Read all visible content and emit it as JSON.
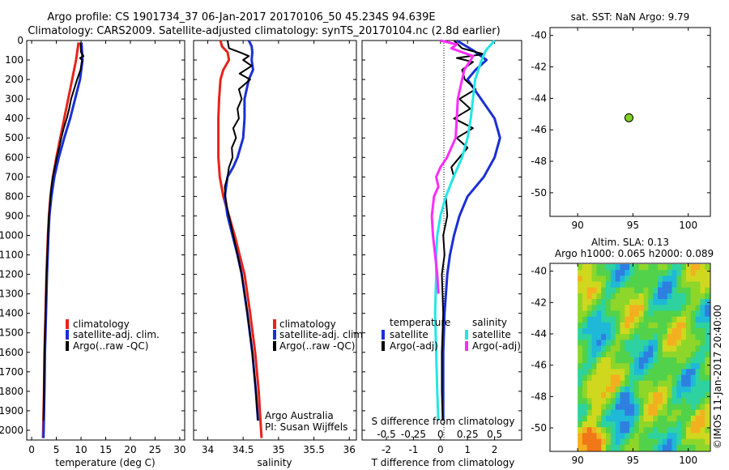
{
  "header": {
    "title_line1": "Argo profile: CS 1901734_37 06-Jan-2017 20170106_50 45.234S 94.639E",
    "title_line2": "Climatology: CARS2009. Satellite-adjusted climatology: synTS_20170104.nc (2.8d earlier)"
  },
  "side_labels": {
    "sst": "sat. SST: NaN Argo: 9.79",
    "sla_line1": "Altim. SLA: 0.13",
    "sla_line2": "Argo h1000: 0.065 h2000: 0.089",
    "stamp": "©IMOS 11-Jan-2017 20:40:00"
  },
  "credits": {
    "line1": "Argo Australia",
    "line2": "PI: Susan Wijffels"
  },
  "colors": {
    "climatology": "#e8231b",
    "satellite": "#1a2fd6",
    "argo": "#000000",
    "salinity_satellite": "#22e6e6",
    "salinity_argo": "#ff2bff",
    "float_dot": "#7dd321"
  },
  "chart_data": [
    {
      "type": "line",
      "xlabel": "temperature (deg C)",
      "xlim": [
        -1,
        31
      ],
      "xticks": [
        0,
        5,
        10,
        15,
        20,
        25,
        30
      ],
      "ylim": [
        2050,
        0
      ],
      "yticks": [
        0,
        100,
        200,
        300,
        400,
        500,
        600,
        700,
        800,
        900,
        1000,
        1100,
        1200,
        1300,
        1400,
        1500,
        1600,
        1700,
        1800,
        1900,
        2000
      ],
      "legend": [
        "climatology",
        "satellite-adj. clim.",
        "Argo(..raw -QC)"
      ],
      "series": [
        {
          "name": "climatology",
          "color": "#e8231b",
          "depth": [
            10,
            100,
            200,
            300,
            400,
            500,
            600,
            700,
            800,
            900,
            1000,
            1200,
            1400,
            1600,
            1800,
            2040
          ],
          "values": [
            9.5,
            9.0,
            8.2,
            7.4,
            6.6,
            5.8,
            5.0,
            4.3,
            3.8,
            3.5,
            3.3,
            3.0,
            2.8,
            2.6,
            2.5,
            2.3
          ]
        },
        {
          "name": "satellite-adj. clim.",
          "color": "#1a2fd6",
          "depth": [
            10,
            100,
            200,
            300,
            400,
            500,
            600,
            700,
            800,
            900,
            1000,
            1200,
            1400,
            1600,
            1800,
            2040
          ],
          "values": [
            10.1,
            10.3,
            9.8,
            8.8,
            7.8,
            6.6,
            5.5,
            4.6,
            4.0,
            3.6,
            3.4,
            3.1,
            2.9,
            2.7,
            2.6,
            2.4
          ]
        },
        {
          "name": "Argo(..raw -QC)",
          "color": "#000000",
          "depth": [
            10,
            60,
            80,
            90,
            100,
            150,
            200,
            250,
            300,
            350,
            400,
            450,
            500,
            550,
            600,
            650,
            700,
            750,
            800,
            900,
            1000,
            1200,
            1400,
            1600,
            1800,
            1950
          ],
          "values": [
            9.9,
            10.0,
            10.5,
            9.8,
            10.2,
            9.9,
            9.2,
            8.6,
            8.0,
            7.6,
            7.1,
            6.5,
            6.0,
            5.6,
            5.1,
            4.7,
            4.3,
            4.0,
            3.8,
            3.5,
            3.3,
            3.0,
            2.8,
            2.6,
            2.5,
            2.4
          ]
        }
      ]
    },
    {
      "type": "line",
      "xlabel": "salinity",
      "xlim": [
        33.8,
        36.1
      ],
      "xticks": [
        34,
        34.5,
        35,
        35.5,
        36
      ],
      "ylim": [
        2050,
        0
      ],
      "legend": [
        "climatology",
        "satellite-adj. clim.",
        "Argo(..raw -QC)"
      ],
      "series": [
        {
          "name": "climatology",
          "color": "#e8231b",
          "depth": [
            0,
            30,
            60,
            100,
            150,
            200,
            300,
            400,
            500,
            600,
            650,
            700,
            800,
            900,
            1000,
            1100,
            1200,
            1400,
            1600,
            1800,
            2040
          ],
          "values": [
            34.18,
            34.2,
            34.28,
            34.3,
            34.22,
            34.18,
            34.16,
            34.15,
            34.15,
            34.15,
            34.16,
            34.17,
            34.22,
            34.3,
            34.38,
            34.45,
            34.52,
            34.6,
            34.67,
            34.72,
            34.76
          ]
        },
        {
          "name": "satellite-adj. clim.",
          "color": "#1a2fd6",
          "depth": [
            0,
            30,
            60,
            100,
            150,
            200,
            300,
            400,
            500,
            600,
            650,
            700,
            800,
            900,
            1000,
            1100,
            1200,
            1300,
            1400,
            1600,
            1800,
            1950
          ],
          "values": [
            34.58,
            34.62,
            34.63,
            34.62,
            34.64,
            34.58,
            34.52,
            34.52,
            34.5,
            34.42,
            34.36,
            34.28,
            34.24,
            34.28,
            34.35,
            34.42,
            34.48,
            34.52,
            34.56,
            34.63,
            34.68,
            34.71
          ]
        },
        {
          "name": "Argo(..raw -QC)",
          "color": "#000000",
          "depth": [
            0,
            40,
            60,
            80,
            100,
            130,
            170,
            200,
            250,
            300,
            350,
            400,
            450,
            500,
            550,
            600,
            650,
            700,
            750,
            800,
            850,
            900,
            1000,
            1100,
            1200,
            1300,
            1400,
            1600,
            1800,
            1950
          ],
          "values": [
            34.28,
            34.3,
            34.45,
            34.58,
            34.5,
            34.62,
            34.45,
            34.6,
            34.44,
            34.48,
            34.42,
            34.44,
            34.36,
            34.4,
            34.34,
            34.35,
            34.3,
            34.28,
            34.24,
            34.25,
            34.27,
            34.3,
            34.36,
            34.42,
            34.48,
            34.52,
            34.56,
            34.63,
            34.68,
            34.71
          ]
        }
      ]
    },
    {
      "type": "line",
      "xlabel": "T difference from climatology",
      "xlabel_top": "S difference from climatology",
      "xlim": [
        -2.9,
        3.0
      ],
      "xticks": [
        -2,
        -1,
        0,
        1,
        2
      ],
      "xticks_top": [
        -0.5,
        -0.25,
        0,
        0.25,
        0.5
      ],
      "ylim": [
        2050,
        0
      ],
      "legend": {
        "temperature_header": "temperature",
        "salinity_header": "salinity",
        "items": [
          "satellite",
          "Argo(-adj)",
          "satellite",
          "Argo(-adj)"
        ]
      },
      "series": [
        {
          "name": "satellite",
          "group": "temperature",
          "color": "#1a2fd6",
          "depth": [
            0,
            50,
            100,
            150,
            200,
            300,
            400,
            500,
            600,
            700,
            800,
            900,
            1000,
            1100,
            1200,
            1400,
            1600,
            1800,
            1950
          ],
          "values": [
            0.6,
            1.2,
            1.7,
            1.3,
            1.0,
            1.5,
            2.0,
            2.2,
            2.0,
            1.6,
            1.0,
            0.7,
            0.5,
            0.35,
            0.25,
            0.15,
            0.1,
            0.1,
            0.1
          ]
        },
        {
          "name": "Argo(-adj)",
          "group": "temperature",
          "color": "#000000",
          "depth": [
            0,
            40,
            70,
            90,
            110,
            150,
            200,
            250,
            300,
            350,
            400,
            450,
            500,
            550,
            600,
            650,
            700,
            800,
            900,
            1000,
            1100,
            1200,
            1400,
            1600,
            1800,
            1950
          ],
          "values": [
            0.5,
            0.8,
            1.6,
            0.6,
            1.2,
            0.8,
            0.9,
            1.3,
            0.7,
            1.1,
            0.5,
            1.2,
            0.6,
            1.0,
            0.7,
            0.4,
            0.5,
            0.2,
            0.25,
            0.1,
            0.15,
            0.05,
            0.1,
            0.05,
            0.05,
            0.08
          ]
        },
        {
          "name": "satellite",
          "group": "salinity",
          "color": "#22e6e6",
          "depth": [
            0,
            50,
            100,
            200,
            300,
            400,
            500,
            600,
            700,
            800,
            900,
            1000,
            1100,
            1200,
            1400,
            1600,
            1800,
            1950
          ],
          "values": [
            0.5,
            0.42,
            0.38,
            0.32,
            0.3,
            0.28,
            0.25,
            0.2,
            0.12,
            0.05,
            0.0,
            -0.03,
            -0.04,
            -0.04,
            -0.05,
            -0.04,
            -0.03,
            -0.02
          ]
        },
        {
          "name": "Argo(-adj)",
          "group": "salinity",
          "color": "#ff2bff",
          "depth": [
            0,
            20,
            40,
            60,
            80,
            100,
            150,
            200,
            300,
            400,
            500,
            600,
            650,
            700,
            750,
            800,
            900,
            1000,
            1100,
            1200,
            1300
          ],
          "values": [
            0.0,
            0.15,
            0.1,
            0.2,
            0.3,
            0.28,
            0.22,
            0.2,
            0.16,
            0.15,
            0.14,
            0.06,
            0.0,
            -0.04,
            -0.02,
            -0.06,
            -0.08,
            -0.07,
            -0.05,
            -0.03,
            -0.02
          ]
        }
      ]
    },
    {
      "type": "scatter",
      "title": "sat. SST: NaN Argo: 9.79",
      "xlim": [
        87.5,
        102
      ],
      "xticks": [
        90,
        95,
        100
      ],
      "ylim": [
        -51.5,
        -39.5
      ],
      "yticks": [
        -40,
        -42,
        -44,
        -46,
        -48,
        -50
      ],
      "points": [
        {
          "x": 94.639,
          "y": -45.234
        }
      ]
    },
    {
      "type": "heatmap",
      "title": "Altim. SLA: 0.13",
      "subtitle": "Argo h1000: 0.065 h2000: 0.089",
      "xlim": [
        87.5,
        102
      ],
      "xticks": [
        90,
        95,
        100
      ],
      "data_xlim": [
        90,
        102
      ],
      "ylim": [
        -51.5,
        -39.5
      ],
      "yticks": [
        -40,
        -42,
        -44,
        -46,
        -48,
        -50
      ],
      "colors": [
        "#2f7fe0",
        "#1fb8d8",
        "#2ed2a0",
        "#52d24a",
        "#8ed62a",
        "#cfd81e",
        "#f2b020",
        "#f07818"
      ]
    }
  ]
}
